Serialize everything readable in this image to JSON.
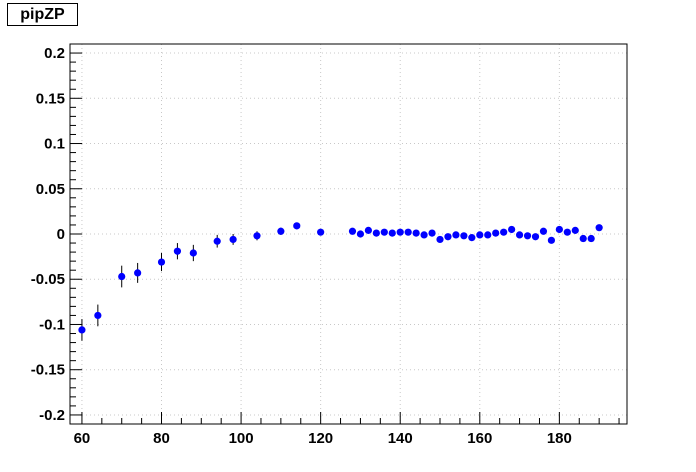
{
  "chart_data": {
    "type": "scatter",
    "title": "pipZP",
    "xlabel": "",
    "ylabel": "",
    "xlim": [
      57,
      197
    ],
    "ylim": [
      -0.21,
      0.21
    ],
    "grid": true,
    "x_ticks": [
      60,
      80,
      100,
      120,
      140,
      160,
      180
    ],
    "y_ticks": [
      -0.2,
      -0.15,
      -0.1,
      -0.05,
      0,
      0.05,
      0.1,
      0.15,
      0.2
    ],
    "x_tick_labels": [
      "60",
      "80",
      "100",
      "120",
      "140",
      "160",
      "180"
    ],
    "y_tick_labels": [
      "-0.2",
      "-0.15",
      "-0.1",
      "-0.05",
      "0",
      "0.05",
      "0.1",
      "0.15",
      "0.2"
    ],
    "marker_color": "#0000ff",
    "series": [
      {
        "points": [
          {
            "x": 60,
            "y": -0.106,
            "err": 0.012
          },
          {
            "x": 64,
            "y": -0.09,
            "err": 0.012
          },
          {
            "x": 70,
            "y": -0.047,
            "err": 0.012
          },
          {
            "x": 74,
            "y": -0.043,
            "err": 0.011
          },
          {
            "x": 80,
            "y": -0.031,
            "err": 0.01
          },
          {
            "x": 84,
            "y": -0.019,
            "err": 0.009
          },
          {
            "x": 88,
            "y": -0.021,
            "err": 0.009
          },
          {
            "x": 94,
            "y": -0.008,
            "err": 0.007
          },
          {
            "x": 98,
            "y": -0.006,
            "err": 0.006
          },
          {
            "x": 104,
            "y": -0.002,
            "err": 0.005
          },
          {
            "x": 110,
            "y": 0.003,
            "err": 0.004
          },
          {
            "x": 114,
            "y": 0.009,
            "err": 0.003
          },
          {
            "x": 120,
            "y": 0.002,
            "err": 0.002
          },
          {
            "x": 128,
            "y": 0.003,
            "err": 0.002
          },
          {
            "x": 130,
            "y": 0.0,
            "err": 0.002
          },
          {
            "x": 132,
            "y": 0.004,
            "err": 0.002
          },
          {
            "x": 134,
            "y": 0.001,
            "err": 0.002
          },
          {
            "x": 136,
            "y": 0.002,
            "err": 0.002
          },
          {
            "x": 138,
            "y": 0.001,
            "err": 0.002
          },
          {
            "x": 140,
            "y": 0.002,
            "err": 0.002
          },
          {
            "x": 142,
            "y": 0.002,
            "err": 0.002
          },
          {
            "x": 144,
            "y": 0.001,
            "err": 0.002
          },
          {
            "x": 146,
            "y": -0.001,
            "err": 0.002
          },
          {
            "x": 148,
            "y": 0.001,
            "err": 0.002
          },
          {
            "x": 150,
            "y": -0.006,
            "err": 0.002
          },
          {
            "x": 152,
            "y": -0.003,
            "err": 0.002
          },
          {
            "x": 154,
            "y": -0.001,
            "err": 0.002
          },
          {
            "x": 156,
            "y": -0.002,
            "err": 0.002
          },
          {
            "x": 158,
            "y": -0.004,
            "err": 0.002
          },
          {
            "x": 160,
            "y": -0.001,
            "err": 0.002
          },
          {
            "x": 162,
            "y": -0.001,
            "err": 0.002
          },
          {
            "x": 164,
            "y": 0.001,
            "err": 0.002
          },
          {
            "x": 166,
            "y": 0.002,
            "err": 0.002
          },
          {
            "x": 168,
            "y": 0.005,
            "err": 0.002
          },
          {
            "x": 170,
            "y": -0.001,
            "err": 0.002
          },
          {
            "x": 172,
            "y": -0.002,
            "err": 0.002
          },
          {
            "x": 174,
            "y": -0.003,
            "err": 0.002
          },
          {
            "x": 176,
            "y": 0.003,
            "err": 0.002
          },
          {
            "x": 178,
            "y": -0.007,
            "err": 0.002
          },
          {
            "x": 180,
            "y": 0.005,
            "err": 0.002
          },
          {
            "x": 182,
            "y": 0.002,
            "err": 0.002
          },
          {
            "x": 184,
            "y": 0.004,
            "err": 0.002
          },
          {
            "x": 186,
            "y": -0.005,
            "err": 0.002
          },
          {
            "x": 188,
            "y": -0.005,
            "err": 0.002
          },
          {
            "x": 190,
            "y": 0.007,
            "err": 0.002
          }
        ]
      }
    ]
  }
}
